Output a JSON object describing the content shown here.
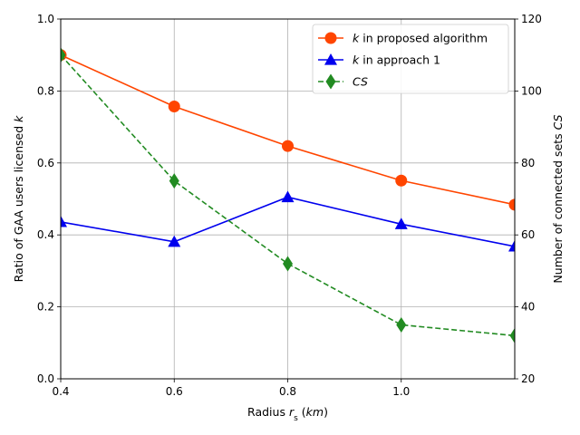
{
  "chart_data": {
    "type": "line",
    "xlabel_parts": [
      "Radius ",
      "r",
      "s",
      " (",
      "km",
      ")"
    ],
    "ylabel_left_parts": [
      "Ratio of GAA users licensed ",
      "k"
    ],
    "ylabel_right_parts": [
      "Number of connected sets ",
      "CS"
    ],
    "x_ticks": [
      "0.4",
      "0.6",
      "0.8",
      "1.0"
    ],
    "y_left_ticks": [
      "0.0",
      "0.2",
      "0.4",
      "0.6",
      "0.8",
      "1.0"
    ],
    "y_right_ticks": [
      "20",
      "40",
      "60",
      "80",
      "100",
      "120"
    ],
    "xlim": [
      0.4,
      1.2
    ],
    "ylim_left": [
      0,
      1.0
    ],
    "ylim_right": [
      20,
      120
    ],
    "grid": true,
    "legend_position": "top-right",
    "x": [
      0.4,
      0.6,
      0.8,
      1.0,
      1.2
    ],
    "series": [
      {
        "legend_italic": "k",
        "legend_rest": " in proposed algorithm",
        "axis": "left",
        "values": [
          0.9,
          0.757,
          0.647,
          0.551,
          0.484
        ],
        "color": "#ff4500",
        "marker": "circle",
        "dashed": false
      },
      {
        "legend_italic": "k",
        "legend_rest": " in approach 1",
        "axis": "left",
        "values": [
          0.436,
          0.381,
          0.505,
          0.43,
          0.368
        ],
        "color": "#0000ee",
        "marker": "triangle",
        "dashed": false
      },
      {
        "legend_italic": "CS",
        "legend_rest": "",
        "axis": "right",
        "values": [
          110,
          75,
          52,
          35,
          32
        ],
        "color": "#228b22",
        "marker": "diamond",
        "dashed": true
      }
    ]
  }
}
